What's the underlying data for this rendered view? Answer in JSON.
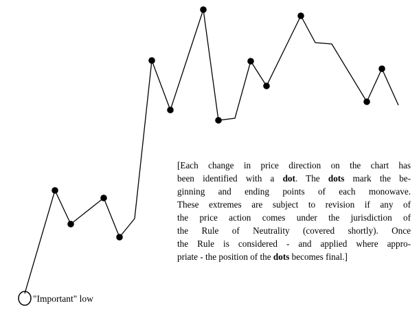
{
  "note": {
    "lines": [
      [
        "[Each change in price direction on the chart has"
      ],
      [
        "been identified with a ",
        "dot",
        ".  The ",
        "dots",
        " mark the be-"
      ],
      [
        "ginning and ending points of each monowave."
      ],
      [
        "These extremes are subject to revision if any of"
      ],
      [
        "the price action comes under the jurisdiction of"
      ],
      [
        "the Rule of Neutrality (covered shortly).  Once"
      ],
      [
        "the Rule is considered - and applied where appro-"
      ],
      [
        "priate - the position of the ",
        "dots",
        " becomes final.]"
      ]
    ]
  },
  "low_label": "\"Important\" low"
}
